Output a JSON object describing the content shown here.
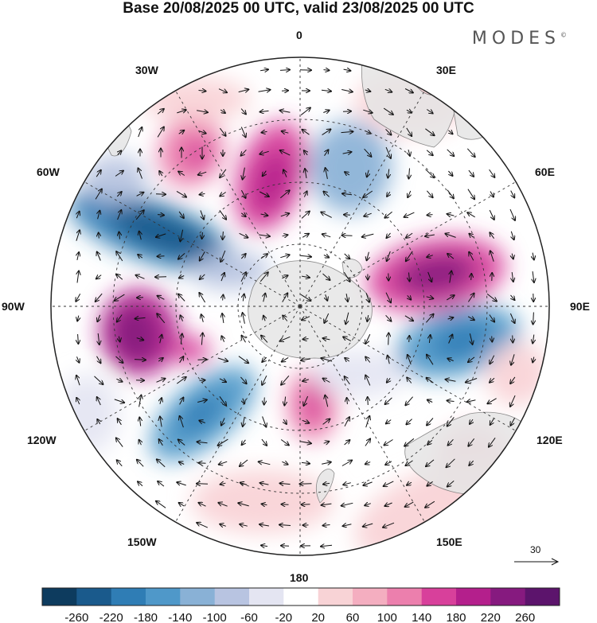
{
  "title": "Base 20/08/2025 00 UTC, valid 23/08/2025 00 UTC",
  "brand": {
    "name": "MODES",
    "mark": "©"
  },
  "longitude_labels": {
    "n0": "0",
    "e30": "30E",
    "e60": "60E",
    "e90": "90E",
    "e120": "120E",
    "e150": "150E",
    "s180": "180",
    "w150": "150W",
    "w120": "120W",
    "w90": "90W",
    "w60": "60W",
    "w30": "30W"
  },
  "vector_scale": {
    "value": "30"
  },
  "colorbar": {
    "ticks": [
      "-260",
      "-220",
      "-180",
      "-140",
      "-100",
      "-60",
      "-20",
      "20",
      "60",
      "100",
      "140",
      "180",
      "220",
      "260"
    ],
    "colors": [
      "#0d3b5e",
      "#1a5a8c",
      "#2f7db5",
      "#4f98c9",
      "#89b1d6",
      "#b8c4e1",
      "#e4e5f2",
      "#ffffff",
      "#f8d3d6",
      "#f4aec0",
      "#ec7fad",
      "#d8409b",
      "#b41f8c",
      "#861a7f",
      "#5c146c"
    ]
  },
  "colors": {
    "land": "#e6e6e6",
    "coast": "#777777",
    "grid": "#333333",
    "arrow": "#111111"
  }
}
